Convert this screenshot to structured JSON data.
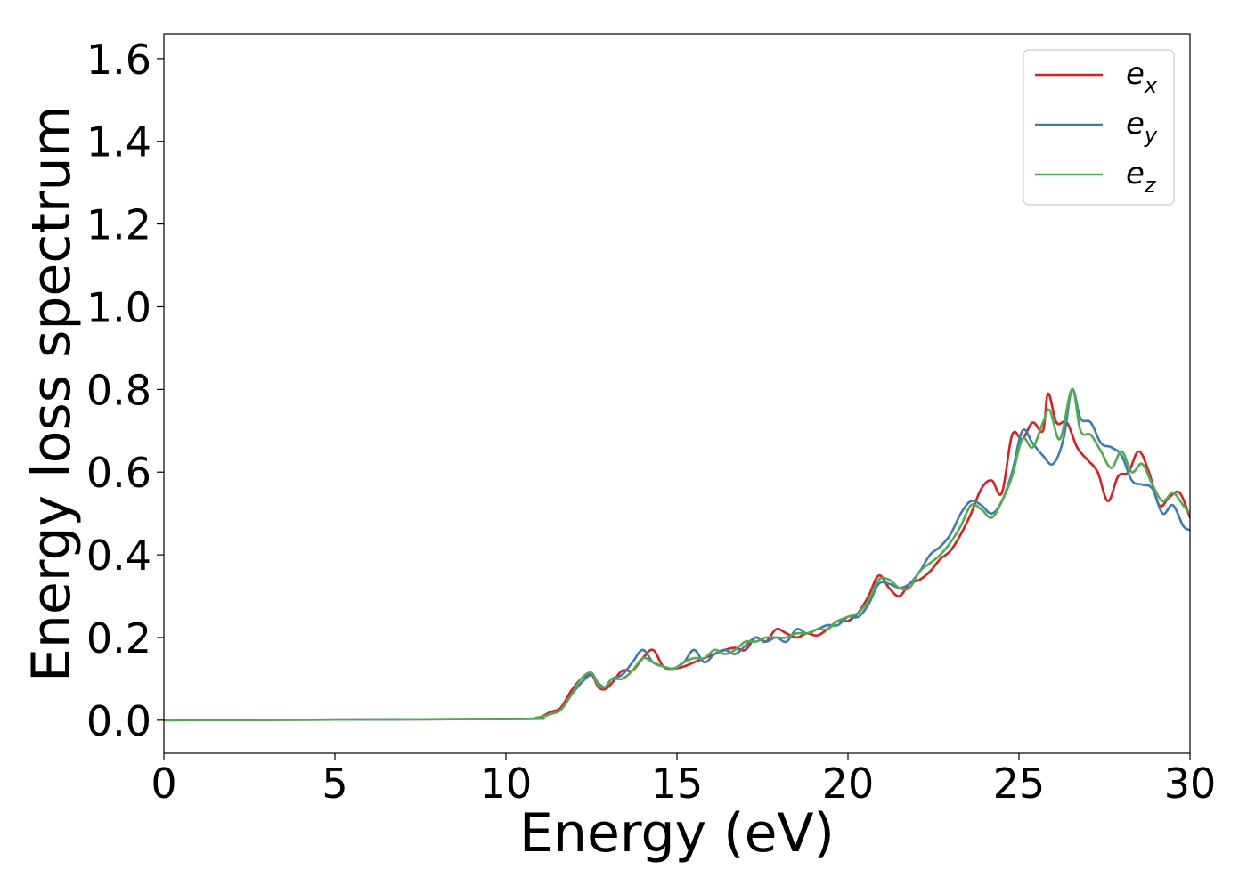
{
  "chart_data": {
    "type": "line",
    "title": "",
    "xlabel": "Energy (eV)",
    "ylabel": "Energy loss spectrum",
    "xlim": [
      0,
      30
    ],
    "ylim": [
      -0.08,
      1.66
    ],
    "xticks": [
      0,
      5,
      10,
      15,
      20,
      25,
      30
    ],
    "xtick_labels": [
      "0",
      "5",
      "10",
      "15",
      "20",
      "25",
      "30"
    ],
    "yticks": [
      0.0,
      0.2,
      0.4,
      0.6,
      0.8,
      1.0,
      1.2,
      1.4,
      1.6
    ],
    "ytick_labels": [
      "0.0",
      "0.2",
      "0.4",
      "0.6",
      "0.8",
      "1.0",
      "1.2",
      "1.4",
      "1.6"
    ],
    "grid": false,
    "legend_position": "top-right",
    "series": [
      {
        "name": "e_x",
        "legend_main": "e",
        "legend_sub": "x",
        "color": "#e41a1c",
        "x": [
          0,
          10,
          10.9,
          11.3,
          11.6,
          11.9,
          12.2,
          12.5,
          12.7,
          12.9,
          13.1,
          13.4,
          13.7,
          14.0,
          14.3,
          14.6,
          14.9,
          15.2,
          15.5,
          15.8,
          16.1,
          16.4,
          16.7,
          17.0,
          17.3,
          17.6,
          17.9,
          18.2,
          18.5,
          18.8,
          19.1,
          19.4,
          19.7,
          20.0,
          20.3,
          20.6,
          20.9,
          21.2,
          21.5,
          21.8,
          22.1,
          22.4,
          22.7,
          23.0,
          23.3,
          23.6,
          23.9,
          24.2,
          24.5,
          24.8,
          25.1,
          25.4,
          25.7,
          25.85,
          26.1,
          26.4,
          26.7,
          27.0,
          27.3,
          27.6,
          27.9,
          28.2,
          28.5,
          28.8,
          29.1,
          29.4,
          29.7,
          30.0
        ],
        "y": [
          0.0,
          0.003,
          0.006,
          0.02,
          0.03,
          0.07,
          0.1,
          0.11,
          0.08,
          0.075,
          0.09,
          0.12,
          0.12,
          0.15,
          0.17,
          0.13,
          0.125,
          0.13,
          0.14,
          0.15,
          0.16,
          0.17,
          0.175,
          0.17,
          0.2,
          0.19,
          0.22,
          0.21,
          0.2,
          0.21,
          0.205,
          0.22,
          0.24,
          0.24,
          0.26,
          0.3,
          0.35,
          0.32,
          0.3,
          0.33,
          0.34,
          0.36,
          0.39,
          0.41,
          0.45,
          0.5,
          0.56,
          0.58,
          0.55,
          0.69,
          0.68,
          0.72,
          0.7,
          0.79,
          0.72,
          0.72,
          0.66,
          0.63,
          0.6,
          0.53,
          0.59,
          0.6,
          0.65,
          0.6,
          0.52,
          0.54,
          0.55,
          0.49
        ]
      },
      {
        "name": "e_y",
        "legend_main": "e",
        "legend_sub": "y",
        "color": "#377eb8",
        "x": [
          0,
          10,
          10.9,
          11.3,
          11.6,
          11.9,
          12.2,
          12.5,
          12.7,
          12.9,
          13.1,
          13.4,
          13.7,
          14.0,
          14.3,
          14.6,
          14.9,
          15.2,
          15.5,
          15.8,
          16.1,
          16.4,
          16.7,
          17.0,
          17.3,
          17.6,
          17.9,
          18.2,
          18.5,
          18.8,
          19.1,
          19.4,
          19.7,
          20.0,
          20.3,
          20.6,
          20.9,
          21.2,
          21.5,
          21.8,
          22.1,
          22.4,
          22.7,
          23.0,
          23.3,
          23.6,
          23.9,
          24.2,
          24.5,
          24.8,
          25.1,
          25.4,
          25.7,
          26.0,
          26.3,
          26.55,
          26.8,
          27.1,
          27.4,
          27.7,
          28.0,
          28.3,
          28.6,
          28.9,
          29.2,
          29.5,
          29.8,
          30.0
        ],
        "y": [
          0.0,
          0.003,
          0.006,
          0.015,
          0.025,
          0.06,
          0.09,
          0.11,
          0.09,
          0.08,
          0.1,
          0.11,
          0.14,
          0.17,
          0.14,
          0.13,
          0.125,
          0.14,
          0.17,
          0.14,
          0.16,
          0.17,
          0.16,
          0.18,
          0.2,
          0.19,
          0.2,
          0.19,
          0.22,
          0.21,
          0.22,
          0.23,
          0.23,
          0.25,
          0.25,
          0.28,
          0.33,
          0.33,
          0.32,
          0.33,
          0.36,
          0.4,
          0.42,
          0.45,
          0.5,
          0.53,
          0.52,
          0.5,
          0.53,
          0.6,
          0.7,
          0.67,
          0.64,
          0.62,
          0.68,
          0.8,
          0.73,
          0.72,
          0.67,
          0.66,
          0.64,
          0.58,
          0.57,
          0.56,
          0.5,
          0.52,
          0.47,
          0.46
        ]
      },
      {
        "name": "e_z",
        "legend_main": "e",
        "legend_sub": "z",
        "color": "#4daf4a",
        "x": [
          0,
          10,
          10.9,
          11.3,
          11.6,
          11.9,
          12.2,
          12.5,
          12.7,
          12.9,
          13.1,
          13.4,
          13.7,
          14.0,
          14.3,
          14.6,
          14.9,
          15.2,
          15.5,
          15.8,
          16.1,
          16.4,
          16.7,
          17.0,
          17.3,
          17.6,
          17.9,
          18.2,
          18.5,
          18.8,
          19.1,
          19.4,
          19.7,
          20.0,
          20.3,
          20.6,
          20.9,
          21.2,
          21.5,
          21.8,
          22.1,
          22.4,
          22.7,
          23.0,
          23.3,
          23.6,
          23.9,
          24.2,
          24.5,
          24.8,
          25.1,
          25.4,
          25.7,
          25.9,
          26.2,
          26.55,
          26.8,
          27.1,
          27.4,
          27.7,
          28.0,
          28.3,
          28.6,
          28.9,
          29.2,
          29.5,
          29.8,
          30.0
        ],
        "y": [
          0.0,
          0.003,
          0.006,
          0.015,
          0.025,
          0.06,
          0.1,
          0.115,
          0.085,
          0.08,
          0.1,
          0.1,
          0.12,
          0.15,
          0.14,
          0.13,
          0.125,
          0.14,
          0.15,
          0.15,
          0.17,
          0.16,
          0.17,
          0.19,
          0.19,
          0.2,
          0.2,
          0.2,
          0.21,
          0.21,
          0.22,
          0.22,
          0.24,
          0.25,
          0.26,
          0.29,
          0.34,
          0.34,
          0.32,
          0.32,
          0.36,
          0.38,
          0.4,
          0.43,
          0.47,
          0.52,
          0.51,
          0.49,
          0.53,
          0.59,
          0.68,
          0.66,
          0.72,
          0.75,
          0.68,
          0.8,
          0.7,
          0.69,
          0.65,
          0.61,
          0.65,
          0.6,
          0.62,
          0.57,
          0.53,
          0.55,
          0.52,
          0.5
        ]
      }
    ]
  }
}
